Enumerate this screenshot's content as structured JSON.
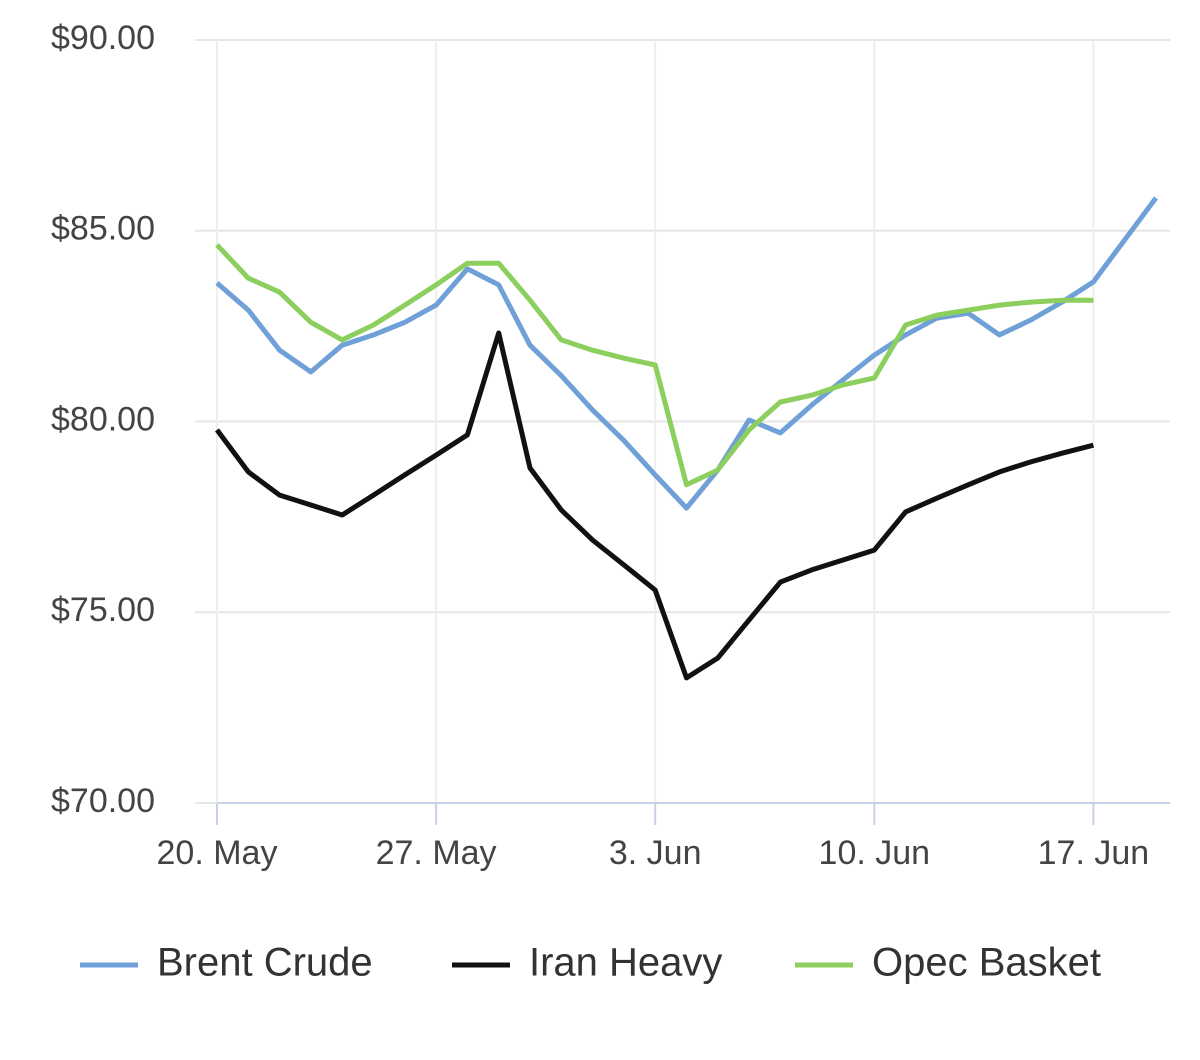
{
  "chart_data": {
    "type": "line",
    "categories": [
      "20. May",
      null,
      null,
      null,
      null,
      null,
      null,
      "27. May",
      null,
      null,
      null,
      null,
      null,
      null,
      "3. Jun",
      null,
      null,
      null,
      null,
      null,
      null,
      "10. Jun",
      null,
      null,
      null,
      null,
      null,
      null,
      "17. Jun",
      null,
      null
    ],
    "series": [
      {
        "name": "Brent Crude",
        "color": "#6fa0d8",
        "values": [
          83.63,
          82.92,
          81.87,
          81.3,
          82.0,
          82.27,
          82.6,
          83.05,
          84.0,
          83.58,
          82.0,
          81.2,
          80.3,
          79.5,
          78.6,
          77.73,
          78.73,
          80.04,
          79.7,
          80.43,
          81.09,
          81.74,
          82.27,
          82.71,
          82.84,
          82.27,
          82.66,
          83.13,
          83.66,
          84.76,
          85.86
        ]
      },
      {
        "name": "Iran Heavy",
        "color": "#111111",
        "values": [
          79.78,
          78.68,
          78.07,
          77.81,
          77.55,
          78.07,
          78.6,
          79.12,
          79.65,
          82.32,
          78.78,
          77.68,
          76.89,
          76.24,
          75.58,
          73.28,
          73.8,
          74.8,
          75.79,
          76.11,
          76.37,
          76.63,
          77.63,
          77.99,
          78.34,
          78.68,
          78.94,
          79.17,
          79.38,
          null,
          null
        ]
      },
      {
        "name": "Opec Basket",
        "color": "#8ccf5e",
        "values": [
          84.63,
          83.76,
          83.39,
          82.6,
          82.14,
          82.53,
          83.05,
          83.58,
          84.15,
          84.15,
          83.18,
          82.14,
          81.87,
          81.66,
          81.48,
          78.34,
          78.73,
          79.78,
          80.51,
          80.69,
          80.96,
          81.14,
          82.53,
          82.79,
          82.92,
          83.05,
          83.13,
          83.18,
          83.18,
          null,
          null
        ]
      }
    ],
    "ylim": [
      70,
      90
    ],
    "yticks": [
      {
        "value": 70,
        "label": "$70.00"
      },
      {
        "value": 75,
        "label": "$75.00"
      },
      {
        "value": 80,
        "label": "$80.00"
      },
      {
        "value": 85,
        "label": "$85.00"
      },
      {
        "value": 90,
        "label": "$90.00"
      }
    ],
    "grid": true,
    "legend": "bottom"
  }
}
